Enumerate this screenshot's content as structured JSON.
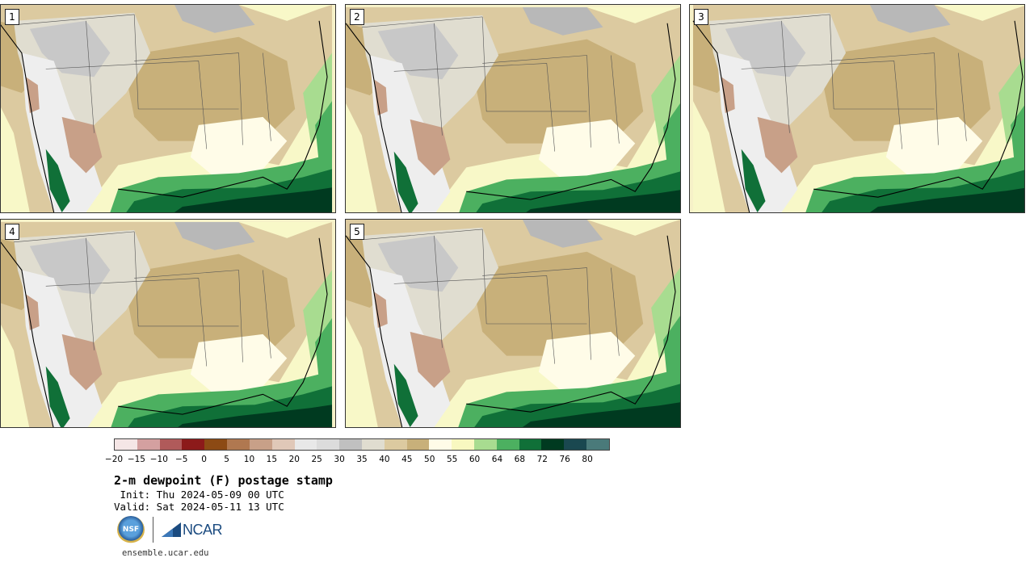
{
  "panels": [
    {
      "label": "1",
      "variant": 0
    },
    {
      "label": "2",
      "variant": 1
    },
    {
      "label": "3",
      "variant": 2
    },
    {
      "label": "4",
      "variant": 3
    },
    {
      "label": "5",
      "variant": 4
    }
  ],
  "colorbar": {
    "colors": [
      "#f5e6e6",
      "#d4a0a0",
      "#b05a5a",
      "#8c1a1a",
      "#8c4a14",
      "#b07850",
      "#c8a088",
      "#e0c8b8",
      "#e8e8e8",
      "#dcdcdc",
      "#c0c0c0",
      "#e0ddd0",
      "#dccaa0",
      "#c8b07a",
      "#fffce8",
      "#f8f8c0",
      "#a8dc90",
      "#4cb060",
      "#107038",
      "#003a20",
      "#1a4850",
      "#4a7a7a"
    ],
    "ticks": [
      "−20",
      "−15",
      "−10",
      "−5",
      "0",
      "5",
      "10",
      "15",
      "20",
      "25",
      "30",
      "35",
      "40",
      "45",
      "50",
      "55",
      "60",
      "64",
      "68",
      "72",
      "76",
      "80"
    ]
  },
  "title": "2-m dewpoint (F) postage stamp",
  "init": " Init: Thu 2024-05-09 00 UTC",
  "valid": "Valid: Sat 2024-05-11 13 UTC",
  "logos": {
    "nsf": "NSF",
    "ncar": "NCAR"
  },
  "url": "ensemble.ucar.edu"
}
